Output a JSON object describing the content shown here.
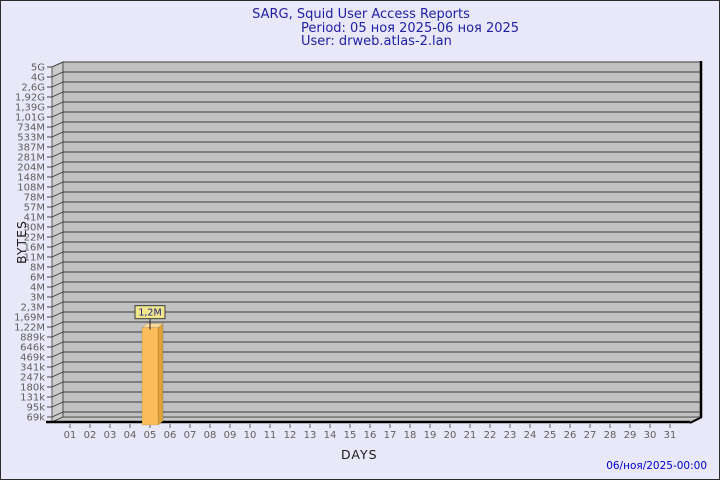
{
  "header": {
    "title": "SARG, Squid User Access Reports",
    "period": "Period: 05 ноя 2025-06 ноя 2025",
    "user": "User: drweb.atlas-2.lan"
  },
  "footer": {
    "generated": "06/ноя/2025-00:00"
  },
  "colors": {
    "background": "#e8e8f8",
    "title_text": "#2121a3",
    "panel": "#c1c1c1",
    "wall": "#cbcbcb",
    "floor": "#c6c6c6",
    "grid_line": "#3a3a3a",
    "axis_edge": "#000000",
    "tick_text": "#5f5f5f",
    "bar_front": "#fbbe5a",
    "bar_side": "#e1a23c",
    "bar_top": "#ffd998",
    "value_box_fill": "#f0e68c",
    "value_box_border": "#3b3b3b",
    "value_text": "#1f2080",
    "footer_text": "#0000cc"
  },
  "chart_data": {
    "type": "bar",
    "title": "SARG, Squid User Access Reports",
    "subtitle": "Period: 05 ноя 2025-06 ноя 2025",
    "user": "User: drweb.atlas-2.lan",
    "xlabel": "DAYS",
    "ylabel": "BYTES",
    "y_scale": "log",
    "grid": true,
    "legend": "none",
    "y_top_value": 5000000000,
    "y_bottom_value": 69000,
    "y_tick_labels": [
      "5G",
      "4G",
      "2,6G",
      "1,92G",
      "1,39G",
      "1,01G",
      "734M",
      "533M",
      "387M",
      "281M",
      "204M",
      "148M",
      "108M",
      "78M",
      "57M",
      "41M",
      "30M",
      "22M",
      "16M",
      "11M",
      "8M",
      "6M",
      "4M",
      "3M",
      "2,3M",
      "1,69M",
      "1,22M",
      "889k",
      "646k",
      "469k",
      "341k",
      "247k",
      "180k",
      "131k",
      "95k",
      "69k"
    ],
    "categories": [
      "01",
      "02",
      "03",
      "04",
      "05",
      "06",
      "07",
      "08",
      "09",
      "10",
      "11",
      "12",
      "13",
      "14",
      "15",
      "16",
      "17",
      "18",
      "19",
      "20",
      "21",
      "22",
      "23",
      "24",
      "25",
      "26",
      "27",
      "28",
      "29",
      "30",
      "31"
    ],
    "bars": [
      {
        "category": "05",
        "value": 1200000,
        "label": "1,2M"
      }
    ]
  }
}
